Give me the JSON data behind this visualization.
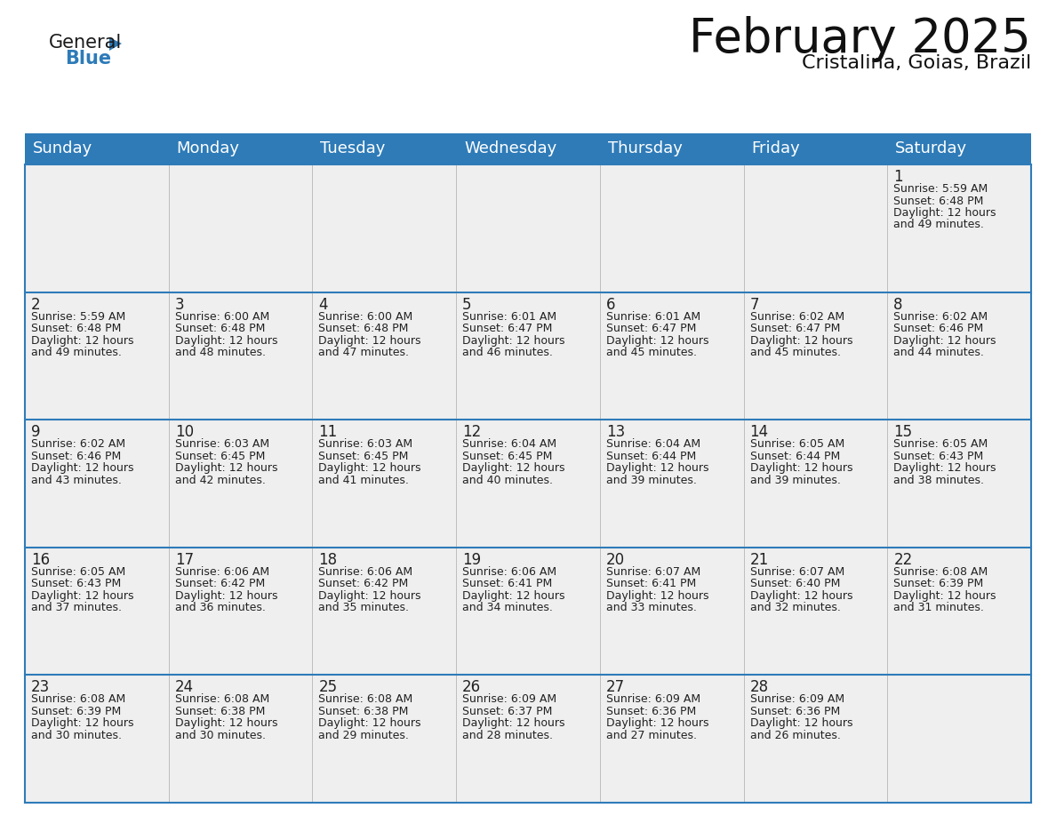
{
  "title": "February 2025",
  "subtitle": "Cristalina, Goias, Brazil",
  "header_bg": "#2E7BB8",
  "header_text": "#FFFFFF",
  "cell_bg": "#EFEFEF",
  "border_color": "#2E7BB8",
  "text_color": "#222222",
  "day_headers": [
    "Sunday",
    "Monday",
    "Tuesday",
    "Wednesday",
    "Thursday",
    "Friday",
    "Saturday"
  ],
  "calendar_data": [
    [
      null,
      null,
      null,
      null,
      null,
      null,
      {
        "day": "1",
        "sunrise": "5:59 AM",
        "sunset": "6:48 PM",
        "daylight1": "12 hours",
        "daylight2": "and 49 minutes."
      }
    ],
    [
      {
        "day": "2",
        "sunrise": "5:59 AM",
        "sunset": "6:48 PM",
        "daylight1": "12 hours",
        "daylight2": "and 49 minutes."
      },
      {
        "day": "3",
        "sunrise": "6:00 AM",
        "sunset": "6:48 PM",
        "daylight1": "12 hours",
        "daylight2": "and 48 minutes."
      },
      {
        "day": "4",
        "sunrise": "6:00 AM",
        "sunset": "6:48 PM",
        "daylight1": "12 hours",
        "daylight2": "and 47 minutes."
      },
      {
        "day": "5",
        "sunrise": "6:01 AM",
        "sunset": "6:47 PM",
        "daylight1": "12 hours",
        "daylight2": "and 46 minutes."
      },
      {
        "day": "6",
        "sunrise": "6:01 AM",
        "sunset": "6:47 PM",
        "daylight1": "12 hours",
        "daylight2": "and 45 minutes."
      },
      {
        "day": "7",
        "sunrise": "6:02 AM",
        "sunset": "6:47 PM",
        "daylight1": "12 hours",
        "daylight2": "and 45 minutes."
      },
      {
        "day": "8",
        "sunrise": "6:02 AM",
        "sunset": "6:46 PM",
        "daylight1": "12 hours",
        "daylight2": "and 44 minutes."
      }
    ],
    [
      {
        "day": "9",
        "sunrise": "6:02 AM",
        "sunset": "6:46 PM",
        "daylight1": "12 hours",
        "daylight2": "and 43 minutes."
      },
      {
        "day": "10",
        "sunrise": "6:03 AM",
        "sunset": "6:45 PM",
        "daylight1": "12 hours",
        "daylight2": "and 42 minutes."
      },
      {
        "day": "11",
        "sunrise": "6:03 AM",
        "sunset": "6:45 PM",
        "daylight1": "12 hours",
        "daylight2": "and 41 minutes."
      },
      {
        "day": "12",
        "sunrise": "6:04 AM",
        "sunset": "6:45 PM",
        "daylight1": "12 hours",
        "daylight2": "and 40 minutes."
      },
      {
        "day": "13",
        "sunrise": "6:04 AM",
        "sunset": "6:44 PM",
        "daylight1": "12 hours",
        "daylight2": "and 39 minutes."
      },
      {
        "day": "14",
        "sunrise": "6:05 AM",
        "sunset": "6:44 PM",
        "daylight1": "12 hours",
        "daylight2": "and 39 minutes."
      },
      {
        "day": "15",
        "sunrise": "6:05 AM",
        "sunset": "6:43 PM",
        "daylight1": "12 hours",
        "daylight2": "and 38 minutes."
      }
    ],
    [
      {
        "day": "16",
        "sunrise": "6:05 AM",
        "sunset": "6:43 PM",
        "daylight1": "12 hours",
        "daylight2": "and 37 minutes."
      },
      {
        "day": "17",
        "sunrise": "6:06 AM",
        "sunset": "6:42 PM",
        "daylight1": "12 hours",
        "daylight2": "and 36 minutes."
      },
      {
        "day": "18",
        "sunrise": "6:06 AM",
        "sunset": "6:42 PM",
        "daylight1": "12 hours",
        "daylight2": "and 35 minutes."
      },
      {
        "day": "19",
        "sunrise": "6:06 AM",
        "sunset": "6:41 PM",
        "daylight1": "12 hours",
        "daylight2": "and 34 minutes."
      },
      {
        "day": "20",
        "sunrise": "6:07 AM",
        "sunset": "6:41 PM",
        "daylight1": "12 hours",
        "daylight2": "and 33 minutes."
      },
      {
        "day": "21",
        "sunrise": "6:07 AM",
        "sunset": "6:40 PM",
        "daylight1": "12 hours",
        "daylight2": "and 32 minutes."
      },
      {
        "day": "22",
        "sunrise": "6:08 AM",
        "sunset": "6:39 PM",
        "daylight1": "12 hours",
        "daylight2": "and 31 minutes."
      }
    ],
    [
      {
        "day": "23",
        "sunrise": "6:08 AM",
        "sunset": "6:39 PM",
        "daylight1": "12 hours",
        "daylight2": "and 30 minutes."
      },
      {
        "day": "24",
        "sunrise": "6:08 AM",
        "sunset": "6:38 PM",
        "daylight1": "12 hours",
        "daylight2": "and 30 minutes."
      },
      {
        "day": "25",
        "sunrise": "6:08 AM",
        "sunset": "6:38 PM",
        "daylight1": "12 hours",
        "daylight2": "and 29 minutes."
      },
      {
        "day": "26",
        "sunrise": "6:09 AM",
        "sunset": "6:37 PM",
        "daylight1": "12 hours",
        "daylight2": "and 28 minutes."
      },
      {
        "day": "27",
        "sunrise": "6:09 AM",
        "sunset": "6:36 PM",
        "daylight1": "12 hours",
        "daylight2": "and 27 minutes."
      },
      {
        "day": "28",
        "sunrise": "6:09 AM",
        "sunset": "6:36 PM",
        "daylight1": "12 hours",
        "daylight2": "and 26 minutes."
      },
      null
    ]
  ],
  "logo_triangle_color": "#2E7BB8",
  "title_fontsize": 38,
  "subtitle_fontsize": 16,
  "header_fontsize": 13,
  "day_num_fontsize": 12,
  "cell_text_fontsize": 9
}
